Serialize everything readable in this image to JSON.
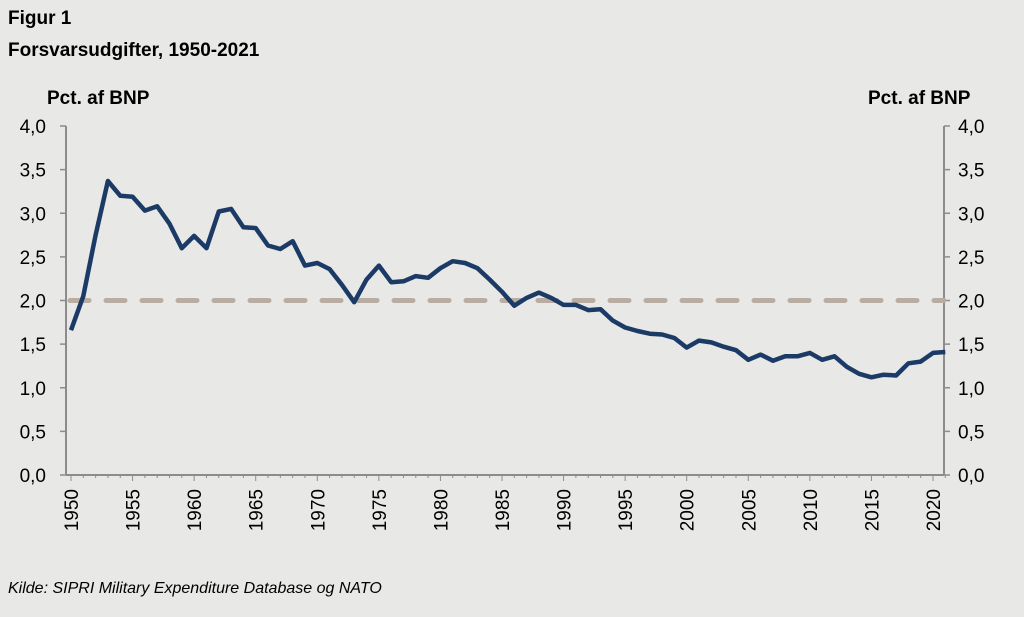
{
  "figure_label": "Figur 1",
  "chart_data": {
    "type": "line",
    "title": "Forsvarsudgifter, 1950-2021",
    "ylabel_left": "Pct. af BNP",
    "ylabel_right": "Pct. af BNP",
    "ylim": [
      0,
      4
    ],
    "yticks": [
      "0,0",
      "0,5",
      "1,0",
      "1,5",
      "2,0",
      "2,5",
      "3,0",
      "3,5",
      "4,0"
    ],
    "xticks": [
      "1950",
      "1955",
      "1960",
      "1965",
      "1970",
      "1975",
      "1980",
      "1985",
      "1990",
      "1995",
      "2000",
      "2005",
      "2010",
      "2015",
      "2020"
    ],
    "grid": false,
    "line_color": "#1b3a66",
    "reference_line": {
      "value": 2.0,
      "style": "dashed",
      "color": "#b9aca3"
    },
    "x": [
      1950,
      1951,
      1952,
      1953,
      1954,
      1955,
      1956,
      1957,
      1958,
      1959,
      1960,
      1961,
      1962,
      1963,
      1964,
      1965,
      1966,
      1967,
      1968,
      1969,
      1970,
      1971,
      1972,
      1973,
      1974,
      1975,
      1976,
      1977,
      1978,
      1979,
      1980,
      1981,
      1982,
      1983,
      1984,
      1985,
      1986,
      1987,
      1988,
      1989,
      1990,
      1991,
      1992,
      1993,
      1994,
      1995,
      1996,
      1997,
      1998,
      1999,
      2000,
      2001,
      2002,
      2003,
      2004,
      2005,
      2006,
      2007,
      2008,
      2009,
      2010,
      2011,
      2012,
      2013,
      2014,
      2015,
      2016,
      2017,
      2018,
      2019,
      2020,
      2021
    ],
    "values": [
      1.66,
      2.05,
      2.75,
      3.37,
      3.2,
      3.19,
      3.03,
      3.08,
      2.88,
      2.6,
      2.74,
      2.6,
      3.02,
      3.05,
      2.84,
      2.83,
      2.63,
      2.59,
      2.68,
      2.4,
      2.43,
      2.36,
      2.18,
      1.98,
      2.24,
      2.4,
      2.21,
      2.22,
      2.28,
      2.26,
      2.37,
      2.45,
      2.43,
      2.37,
      2.24,
      2.1,
      1.94,
      2.03,
      2.09,
      2.03,
      1.95,
      1.95,
      1.89,
      1.9,
      1.77,
      1.69,
      1.65,
      1.62,
      1.61,
      1.57,
      1.46,
      1.54,
      1.52,
      1.47,
      1.43,
      1.32,
      1.38,
      1.31,
      1.36,
      1.36,
      1.4,
      1.32,
      1.36,
      1.24,
      1.16,
      1.12,
      1.15,
      1.14,
      1.28,
      1.3,
      1.4,
      1.41
    ],
    "source": "Kilde: SIPRI Military Expenditure Database og NATO"
  }
}
